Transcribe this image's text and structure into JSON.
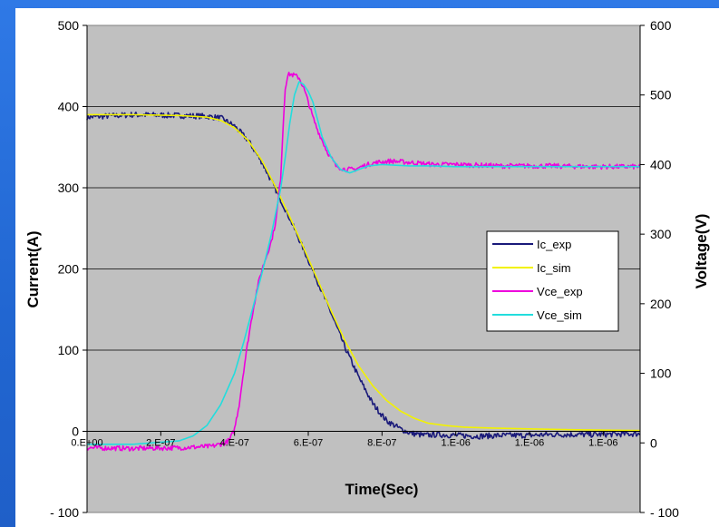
{
  "chart_data": {
    "type": "line",
    "xlabel": "Time(Sec)",
    "ylabel": "Current(A)",
    "y2label": "Voltage(V)",
    "xlim": [
      0,
      1.2e-06
    ],
    "ylim": [
      -100,
      500
    ],
    "y2lim": [
      -100,
      600
    ],
    "x_tick_labels": [
      "0.E+00",
      "2.E-07",
      "4.E-07",
      "6.E-07",
      "8.E-07",
      "1.E-06",
      "1.E-06",
      "1.E-06"
    ],
    "x_tick_values": [
      0,
      1.6e-07,
      3.2e-07,
      4.8e-07,
      6.4e-07,
      8e-07,
      9.6e-07,
      1.12e-06
    ],
    "y_ticks": [
      "- 100",
      "0",
      "100",
      "200",
      "300",
      "400",
      "500"
    ],
    "y_tick_values": [
      -100,
      0,
      100,
      200,
      300,
      400,
      500
    ],
    "y2_ticks": [
      "- 100",
      "0",
      "100",
      "200",
      "300",
      "400",
      "500",
      "600"
    ],
    "y2_tick_values": [
      -100,
      0,
      100,
      200,
      300,
      400,
      500,
      600
    ],
    "grid": true,
    "legend_position": "right",
    "series": [
      {
        "name": "Ic_exp",
        "axis": "left",
        "color": "#1a1a7a",
        "noisy": true,
        "x": [
          0,
          1e-07,
          2e-07,
          2.6e-07,
          2.9e-07,
          3.2e-07,
          3.5e-07,
          3.8e-07,
          4.1e-07,
          4.4e-07,
          4.7e-07,
          5e-07,
          5.3e-07,
          5.6e-07,
          5.9e-07,
          6.2e-07,
          6.5e-07,
          6.8e-07,
          7e-07,
          7.3e-07,
          7.6e-07,
          8e-07,
          8.5e-07,
          9e-07,
          9.6e-07,
          1e-06,
          1.1e-06,
          1.2e-06
        ],
        "y": [
          387,
          390,
          389,
          388,
          386,
          376,
          358,
          331,
          297,
          262,
          224,
          185,
          145,
          103,
          66,
          34,
          13,
          3,
          -2,
          -5,
          -4,
          -5,
          -6,
          -5,
          -5,
          -4,
          -4,
          -3
        ]
      },
      {
        "name": "Ic_sim",
        "axis": "left",
        "color": "#f2f200",
        "noisy": false,
        "x": [
          0,
          1e-07,
          2e-07,
          2.6e-07,
          2.9e-07,
          3.2e-07,
          3.5e-07,
          3.8e-07,
          4.1e-07,
          4.4e-07,
          4.7e-07,
          5e-07,
          5.3e-07,
          5.6e-07,
          5.9e-07,
          6.2e-07,
          6.5e-07,
          6.8e-07,
          7.1e-07,
          7.4e-07,
          7.8e-07,
          8.2e-07,
          8.8e-07,
          9.6e-07,
          1.05e-06,
          1.2e-06
        ],
        "y": [
          390,
          390,
          389,
          387,
          383,
          374,
          358,
          333,
          300,
          264,
          226,
          187,
          148,
          111,
          80,
          56,
          38,
          25,
          16,
          10,
          7,
          5,
          4,
          3,
          2,
          1
        ]
      },
      {
        "name": "Vce_exp",
        "axis": "right",
        "color": "#ee00dd",
        "noisy": true,
        "x": [
          0,
          1e-07,
          2e-07,
          2.7e-07,
          3e-07,
          3.1e-07,
          3.2e-07,
          3.3e-07,
          3.4e-07,
          3.5e-07,
          3.6e-07,
          3.7e-07,
          3.8e-07,
          3.9e-07,
          4e-07,
          4.1e-07,
          4.2e-07,
          4.25e-07,
          4.3e-07,
          4.35e-07,
          4.4e-07,
          4.5e-07,
          4.6e-07,
          4.7e-07,
          4.8e-07,
          4.9e-07,
          5e-07,
          5.2e-07,
          5.4e-07,
          5.6e-07,
          5.8e-07,
          6e-07,
          6.2e-07,
          6.4e-07,
          6.6e-07,
          6.8e-07,
          7e-07,
          7.2e-07,
          7.5e-07,
          8e-07,
          8.5e-07,
          9e-07,
          9.5e-07,
          1e-06,
          1.1e-06,
          1.2e-06
        ],
        "y": [
          -7,
          -8,
          -7,
          -5,
          0,
          5,
          20,
          55,
          105,
          150,
          190,
          225,
          250,
          270,
          290,
          320,
          380,
          450,
          510,
          528,
          530,
          528,
          525,
          510,
          490,
          468,
          450,
          420,
          398,
          393,
          393,
          398,
          402,
          404,
          405,
          404,
          403,
          402,
          400,
          400,
          399,
          398,
          398,
          398,
          397,
          397
        ]
      },
      {
        "name": "Vce_sim",
        "axis": "right",
        "color": "#22dddd",
        "noisy": false,
        "x": [
          0,
          1e-07,
          2e-07,
          2.3e-07,
          2.6e-07,
          2.9e-07,
          3.2e-07,
          3.4e-07,
          3.6e-07,
          3.8e-07,
          4e-07,
          4.2e-07,
          4.3e-07,
          4.4e-07,
          4.5e-07,
          4.6e-07,
          4.7e-07,
          4.8e-07,
          4.9e-07,
          5e-07,
          5.1e-07,
          5.3e-07,
          5.5e-07,
          5.7e-07,
          5.9e-07,
          6.1e-07,
          6.4e-07,
          6.7e-07,
          7e-07,
          7.5e-07,
          8e-07,
          9e-07,
          1e-06,
          1.2e-06
        ],
        "y": [
          -2,
          -2,
          3,
          10,
          25,
          55,
          100,
          145,
          195,
          245,
          300,
          365,
          410,
          460,
          500,
          519,
          515,
          505,
          490,
          465,
          440,
          410,
          393,
          388,
          393,
          398,
          400,
          399,
          398,
          398,
          397,
          397,
          397,
          397
        ]
      }
    ]
  }
}
